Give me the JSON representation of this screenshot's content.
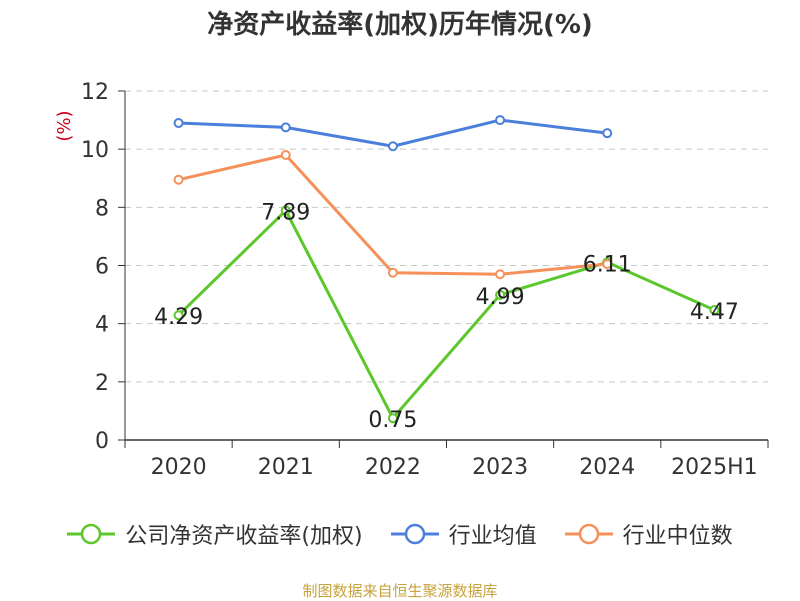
{
  "title": "净资产收益率(加权)历年情况(%)",
  "source": "制图数据来自恒生聚源数据库",
  "chart_data": {
    "type": "line",
    "categories": [
      "2020",
      "2021",
      "2022",
      "2023",
      "2024",
      "2025H1"
    ],
    "ylabel": "(%)",
    "ylim": [
      0,
      12
    ],
    "yticks": [
      0,
      2,
      4,
      6,
      8,
      10,
      12
    ],
    "grid": true,
    "legend_position": "bottom",
    "series": [
      {
        "name": "公司净资产收益率(加权)",
        "color": "#5cc72b",
        "values": [
          4.29,
          7.89,
          0.75,
          4.99,
          6.11,
          4.47
        ],
        "labels": true
      },
      {
        "name": "行业均值",
        "color": "#4a7fdc",
        "values": [
          10.9,
          10.75,
          10.1,
          11.0,
          10.55,
          null
        ],
        "labels": false
      },
      {
        "name": "行业中位数",
        "color": "#f5905a",
        "values": [
          8.95,
          9.8,
          5.75,
          5.7,
          6.05,
          null
        ],
        "labels": false
      }
    ]
  }
}
